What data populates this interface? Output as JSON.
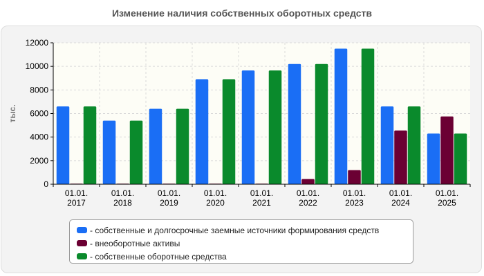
{
  "title": "Изменение наличия собственных оборотных средств",
  "chart_data": {
    "type": "bar",
    "ylabel": "тыс.",
    "ylim": [
      0,
      12000
    ],
    "yticks": [
      0,
      2000,
      4000,
      6000,
      8000,
      10000,
      12000
    ],
    "categories": [
      "01.01.\n2017",
      "01.01.\n2018",
      "01.01.\n2019",
      "01.01.\n2020",
      "01.01.\n2021",
      "01.01.\n2022",
      "01.01.\n2023",
      "01.01.\n2024",
      "01.01.\n2025"
    ],
    "series": [
      {
        "name": "- собственные и долгосрочные заемные источники формирования средств",
        "color": "#1a6ef5",
        "values": [
          6600,
          5400,
          6400,
          8900,
          9650,
          10200,
          11500,
          6600,
          4300
        ]
      },
      {
        "name": "- внеоборотные активы",
        "color": "#6b0033",
        "values": [
          50,
          50,
          50,
          50,
          50,
          450,
          1200,
          4550,
          5750
        ]
      },
      {
        "name": "- собственные оборотные средства",
        "color": "#0a8a2c",
        "values": [
          6600,
          5400,
          6400,
          8900,
          9650,
          10200,
          11500,
          6600,
          4300
        ]
      }
    ],
    "grid": true,
    "legend": "bottom"
  }
}
